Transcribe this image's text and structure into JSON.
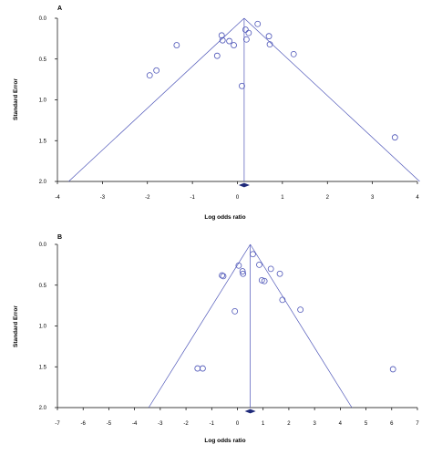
{
  "chart_data": [
    {
      "type": "scatter",
      "panel": "A",
      "xlabel": "Log odds ratio",
      "ylabel": "Standard Error",
      "xlim": [
        -4,
        4
      ],
      "ylim": [
        0,
        2
      ],
      "y_inverted": true,
      "xticks": [
        "-4",
        "-3",
        "-2",
        "-1",
        "0",
        "1",
        "2",
        "3",
        "4"
      ],
      "yticks": [
        "0.0",
        "0.5",
        "1.0",
        "1.5",
        "2.0"
      ],
      "pooled_estimate": 0.15,
      "funnel": {
        "apex": [
          0.15,
          0
        ],
        "base_left": [
          -3.75,
          2
        ],
        "base_right": [
          4.05,
          2
        ]
      },
      "points": [
        {
          "x": -1.95,
          "y": 0.7
        },
        {
          "x": -1.8,
          "y": 0.64
        },
        {
          "x": -1.35,
          "y": 0.33
        },
        {
          "x": -0.45,
          "y": 0.46
        },
        {
          "x": -0.35,
          "y": 0.21
        },
        {
          "x": -0.33,
          "y": 0.27
        },
        {
          "x": -0.18,
          "y": 0.28
        },
        {
          "x": -0.08,
          "y": 0.33
        },
        {
          "x": 0.1,
          "y": 0.83
        },
        {
          "x": 0.18,
          "y": 0.14
        },
        {
          "x": 0.2,
          "y": 0.26
        },
        {
          "x": 0.25,
          "y": 0.18
        },
        {
          "x": 0.45,
          "y": 0.07
        },
        {
          "x": 0.7,
          "y": 0.22
        },
        {
          "x": 0.72,
          "y": 0.32
        },
        {
          "x": 1.25,
          "y": 0.44
        },
        {
          "x": 3.5,
          "y": 1.46
        }
      ]
    },
    {
      "type": "scatter",
      "panel": "B",
      "xlabel": "Log odds ratio",
      "ylabel": "Standard Error",
      "xlim": [
        -7,
        7
      ],
      "ylim": [
        0,
        2
      ],
      "y_inverted": true,
      "xticks": [
        "-7",
        "-6",
        "-5",
        "-4",
        "-3",
        "-2",
        "-1",
        "0",
        "1",
        "2",
        "3",
        "4",
        "5",
        "6",
        "7"
      ],
      "yticks": [
        "0.0",
        "0.5",
        "1.0",
        "1.5",
        "2.0"
      ],
      "pooled_estimate": 0.5,
      "funnel": {
        "apex": [
          0.5,
          0
        ],
        "base_left": [
          -3.45,
          2
        ],
        "base_right": [
          4.45,
          2
        ]
      },
      "points": [
        {
          "x": -1.55,
          "y": 1.52
        },
        {
          "x": -1.35,
          "y": 1.52
        },
        {
          "x": -0.6,
          "y": 0.38
        },
        {
          "x": -0.55,
          "y": 0.39
        },
        {
          "x": -0.1,
          "y": 0.82
        },
        {
          "x": 0.05,
          "y": 0.26
        },
        {
          "x": 0.2,
          "y": 0.33
        },
        {
          "x": 0.22,
          "y": 0.36
        },
        {
          "x": 0.6,
          "y": 0.12
        },
        {
          "x": 0.85,
          "y": 0.25
        },
        {
          "x": 0.95,
          "y": 0.44
        },
        {
          "x": 1.05,
          "y": 0.45
        },
        {
          "x": 1.3,
          "y": 0.3
        },
        {
          "x": 1.65,
          "y": 0.36
        },
        {
          "x": 1.75,
          "y": 0.68
        },
        {
          "x": 2.45,
          "y": 0.8
        },
        {
          "x": 6.05,
          "y": 1.53
        }
      ]
    }
  ]
}
